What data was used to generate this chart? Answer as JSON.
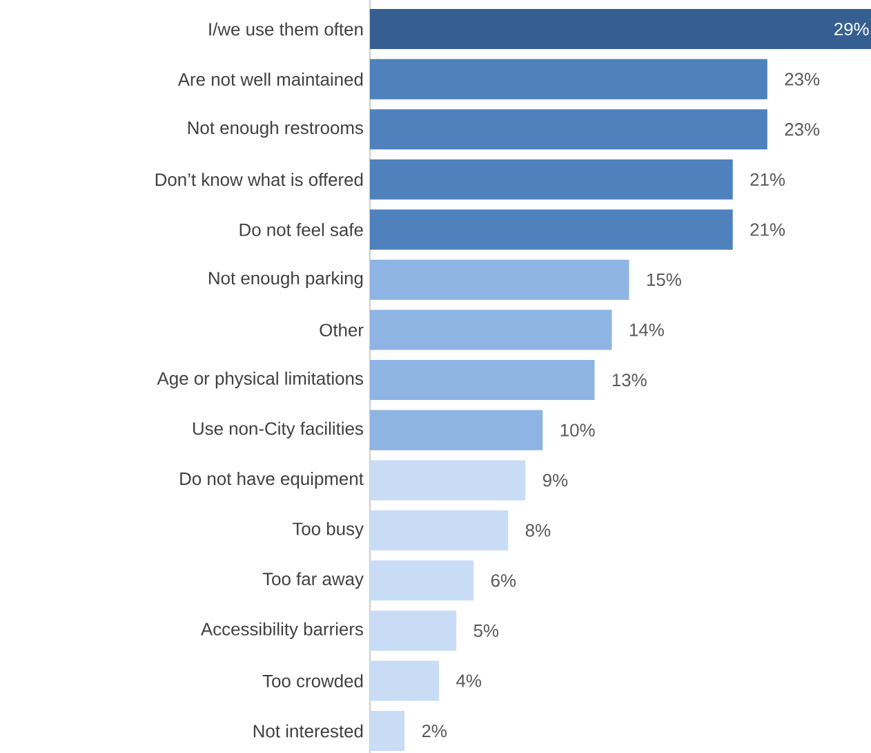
{
  "chart_data": {
    "type": "bar",
    "orientation": "horizontal",
    "tick_labels": "y",
    "xlim": [
      0,
      29
    ],
    "categories": [
      "I/we use them often",
      "Are not well maintained",
      "Not enough restrooms",
      "Don’t know what is offered",
      "Do not feel safe",
      "Not enough parking",
      "Other",
      "Age or physical limitations",
      "Use non-City facilities",
      "Do not have equipment",
      "Too busy",
      "Too far away",
      "Accessibility barriers",
      "Too crowded",
      "Not interested"
    ],
    "values": [
      29,
      23,
      23,
      21,
      21,
      15,
      14,
      13,
      10,
      9,
      8,
      6,
      5,
      4,
      2
    ],
    "colors": [
      "#355f91",
      "#4f81bd",
      "#4f81bd",
      "#4f81bd",
      "#4f81bd",
      "#8eb4e3",
      "#8eb4e3",
      "#8eb4e3",
      "#8eb4e3",
      "#c9dcf6",
      "#c9dcf6",
      "#c9dcf6",
      "#c9dcf6",
      "#c9dcf6",
      "#c9dcf6"
    ],
    "value_labels": [
      "29%",
      "23%",
      "23%",
      "21%",
      "21%",
      "15%",
      "14%",
      "13%",
      "10%",
      "9%",
      "8%",
      "6%",
      "5%",
      "4%",
      "2%"
    ]
  }
}
